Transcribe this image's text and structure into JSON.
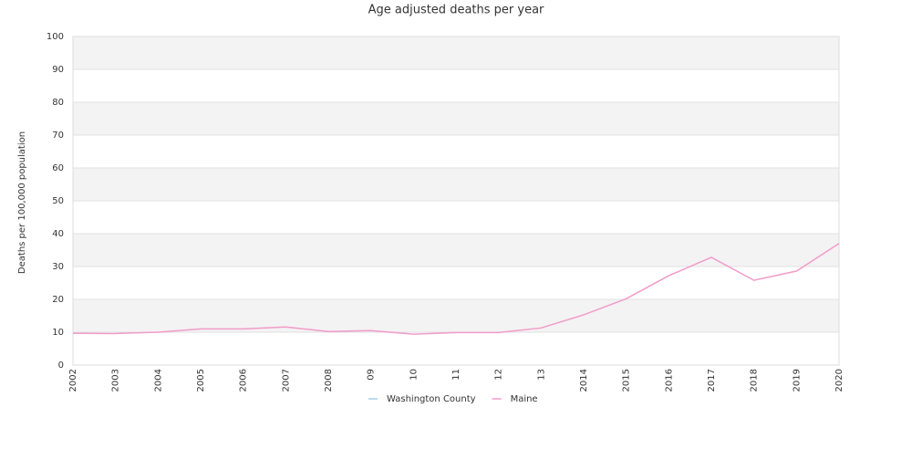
{
  "chart_data": {
    "type": "line",
    "title": "Age adjusted deaths per year",
    "ylabel": "Deaths per 100,000 population",
    "categories": [
      "2002",
      "2003",
      "2004",
      "2005",
      "2006",
      "2007",
      "2008",
      "09",
      "10",
      "11",
      "12",
      "13",
      "2014",
      "2015",
      "2016",
      "2017",
      "2018",
      "2019",
      "2020"
    ],
    "series": [
      {
        "name": "Washington County",
        "color": "#a6cee3",
        "values": [
          null,
          null,
          null,
          null,
          null,
          null,
          null,
          null,
          null,
          null,
          null,
          null,
          null,
          null,
          null,
          null,
          null,
          null,
          null
        ]
      },
      {
        "name": "Maine",
        "color": "#f29bc9",
        "values": [
          9.7,
          9.6,
          10.0,
          11.0,
          11.0,
          11.6,
          10.2,
          10.5,
          9.4,
          9.9,
          9.9,
          11.3,
          15.3,
          20.2,
          27.2,
          32.8,
          25.8,
          28.6,
          37.0
        ]
      }
    ],
    "ylim": [
      0,
      100
    ],
    "yticks": [
      0,
      10,
      20,
      30,
      40,
      50,
      60,
      70,
      80,
      90,
      100
    ],
    "grid": true,
    "legend": "bottom"
  }
}
